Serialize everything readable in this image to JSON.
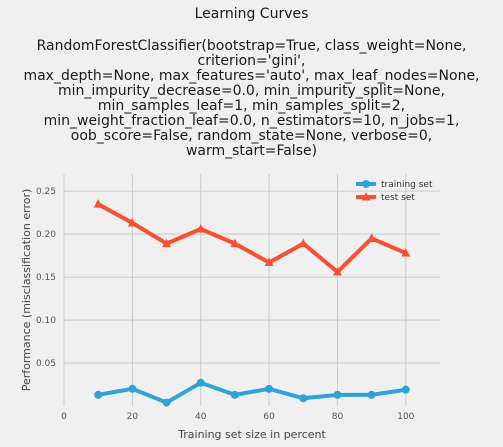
{
  "chart_data": {
    "type": "line",
    "title": "Learning Curves",
    "subtitle": "RandomForestClassifier(bootstrap=True, class_weight=None, criterion='gini',\nmax_depth=None, max_features='auto', max_leaf_nodes=None,\nmin_impurity_decrease=0.0, min_impurity_split=None,\nmin_samples_leaf=1, min_samples_split=2,\nmin_weight_fraction_leaf=0.0, n_estimators=10, n_jobs=1,\noob_score=False, random_state=None, verbose=0,\nwarm_start=False)",
    "xlabel": "Training set size in percent",
    "ylabel": "Performance (misclassification error)",
    "x": [
      10,
      20,
      30,
      40,
      50,
      60,
      70,
      80,
      90,
      100
    ],
    "series": [
      {
        "name": "training set",
        "color": "#30a2da",
        "marker": "circle",
        "values": [
          0.013,
          0.02,
          0.004,
          0.027,
          0.013,
          0.02,
          0.009,
          0.013,
          0.013,
          0.019
        ]
      },
      {
        "name": "test set",
        "color": "#fc4f30",
        "marker": "triangle",
        "values": [
          0.235,
          0.213,
          0.189,
          0.206,
          0.189,
          0.167,
          0.189,
          0.156,
          0.195,
          0.178
        ]
      }
    ],
    "xlim": [
      0,
      110
    ],
    "ylim": [
      0.0,
      0.27
    ],
    "xticks": [
      0,
      20,
      40,
      60,
      80,
      100
    ],
    "yticks": [
      0.05,
      0.1,
      0.15,
      0.2,
      0.25
    ],
    "ytick_labels": [
      "0.05",
      "0.10",
      "0.15",
      "0.20",
      "0.25"
    ],
    "grid": true,
    "legend_position": "top-right"
  }
}
